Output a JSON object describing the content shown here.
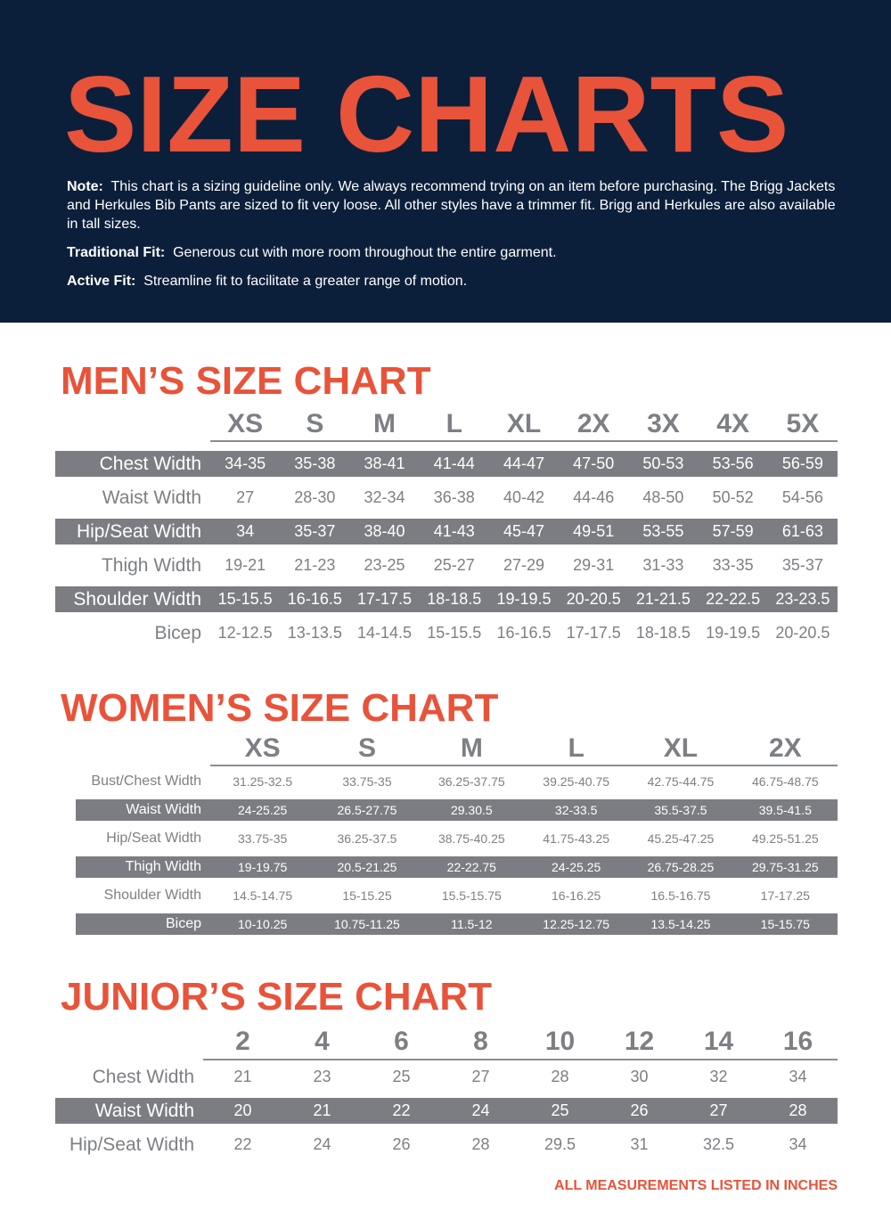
{
  "title": "SIZE CHARTS",
  "notes": [
    {
      "label": "Note:",
      "text": "This chart is a sizing guideline only. We always recommend trying on an item before purchasing. The Brigg Jackets and Herkules Bib Pants are sized to fit very loose. All other styles have a trimmer fit. Brigg and Herkules are also available in tall sizes."
    },
    {
      "label": "Traditional Fit:",
      "text": "Generous cut with more room throughout the entire garment."
    },
    {
      "label": "Active Fit:",
      "text": "Streamline fit to facilitate a greater range of motion."
    }
  ],
  "colors": {
    "navy": "#0c1f3a",
    "accent": "#e8533a",
    "row_gray": "#7b7d82",
    "text_gray": "#7d7f84"
  },
  "men": {
    "title": "MEN’S SIZE CHART",
    "sizes": [
      "XS",
      "S",
      "M",
      "L",
      "XL",
      "2X",
      "3X",
      "4X",
      "5X"
    ],
    "rows": [
      {
        "label": "Chest Width",
        "values": [
          "34-35",
          "35-38",
          "38-41",
          "41-44",
          "44-47",
          "47-50",
          "50-53",
          "53-56",
          "56-59"
        ]
      },
      {
        "label": "Waist Width",
        "values": [
          "27",
          "28-30",
          "32-34",
          "36-38",
          "40-42",
          "44-46",
          "48-50",
          "50-52",
          "54-56"
        ]
      },
      {
        "label": "Hip/Seat Width",
        "values": [
          "34",
          "35-37",
          "38-40",
          "41-43",
          "45-47",
          "49-51",
          "53-55",
          "57-59",
          "61-63"
        ]
      },
      {
        "label": "Thigh Width",
        "values": [
          "19-21",
          "21-23",
          "23-25",
          "25-27",
          "27-29",
          "29-31",
          "31-33",
          "33-35",
          "35-37"
        ]
      },
      {
        "label": "Shoulder Width",
        "values": [
          "15-15.5",
          "16-16.5",
          "17-17.5",
          "18-18.5",
          "19-19.5",
          "20-20.5",
          "21-21.5",
          "22-22.5",
          "23-23.5"
        ]
      },
      {
        "label": "Bicep",
        "values": [
          "12-12.5",
          "13-13.5",
          "14-14.5",
          "15-15.5",
          "16-16.5",
          "17-17.5",
          "18-18.5",
          "19-19.5",
          "20-20.5"
        ]
      }
    ]
  },
  "women": {
    "title": "WOMEN’S SIZE CHART",
    "sizes": [
      "XS",
      "S",
      "M",
      "L",
      "XL",
      "2X"
    ],
    "rows": [
      {
        "label": "Bust/Chest Width",
        "values": [
          "31.25-32.5",
          "33.75-35",
          "36.25-37.75",
          "39.25-40.75",
          "42.75-44.75",
          "46.75-48.75"
        ]
      },
      {
        "label": "Waist Width",
        "values": [
          "24-25.25",
          "26.5-27.75",
          "29.30.5",
          "32-33.5",
          "35.5-37.5",
          "39.5-41.5"
        ]
      },
      {
        "label": "Hip/Seat Width",
        "values": [
          "33.75-35",
          "36.25-37.5",
          "38.75-40.25",
          "41.75-43.25",
          "45.25-47.25",
          "49.25-51.25"
        ]
      },
      {
        "label": "Thigh Width",
        "values": [
          "19-19.75",
          "20.5-21.25",
          "22-22.75",
          "24-25.25",
          "26.75-28.25",
          "29.75-31.25"
        ]
      },
      {
        "label": "Shoulder Width",
        "values": [
          "14.5-14.75",
          "15-15.25",
          "15.5-15.75",
          "16-16.25",
          "16.5-16.75",
          "17-17.25"
        ]
      },
      {
        "label": "Bicep",
        "values": [
          "10-10.25",
          "10.75-11.25",
          "11.5-12",
          "12.25-12.75",
          "13.5-14.25",
          "15-15.75"
        ]
      }
    ]
  },
  "junior": {
    "title": "JUNIOR’S SIZE CHART",
    "sizes": [
      "2",
      "4",
      "6",
      "8",
      "10",
      "12",
      "14",
      "16"
    ],
    "rows": [
      {
        "label": "Chest Width",
        "values": [
          "21",
          "23",
          "25",
          "27",
          "28",
          "30",
          "32",
          "34"
        ]
      },
      {
        "label": "Waist Width",
        "values": [
          "20",
          "21",
          "22",
          "24",
          "25",
          "26",
          "27",
          "28"
        ]
      },
      {
        "label": "Hip/Seat Width",
        "values": [
          "22",
          "24",
          "26",
          "28",
          "29.5",
          "31",
          "32.5",
          "34"
        ]
      }
    ]
  },
  "footer": "ALL  MEASUREMENTS LISTED IN INCHES"
}
